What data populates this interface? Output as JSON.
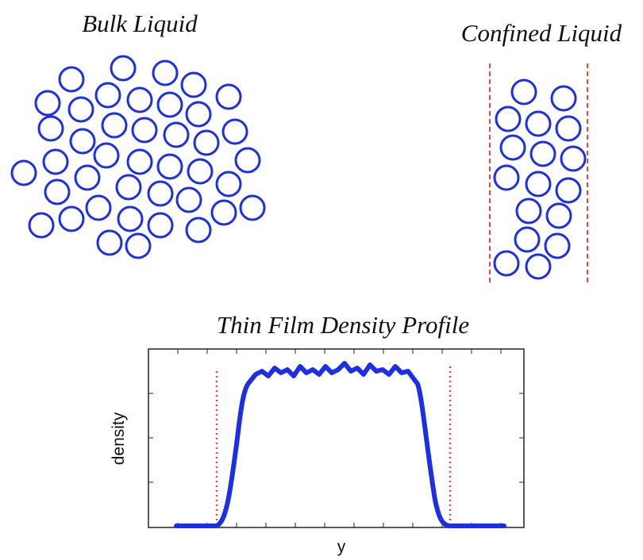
{
  "bulk": {
    "title": "Bulk Liquid"
  },
  "confined": {
    "title": "Confined Liquid"
  },
  "profile": {
    "title": "Thin Film Density Profile",
    "x_label": "y",
    "y_label": "density"
  }
}
